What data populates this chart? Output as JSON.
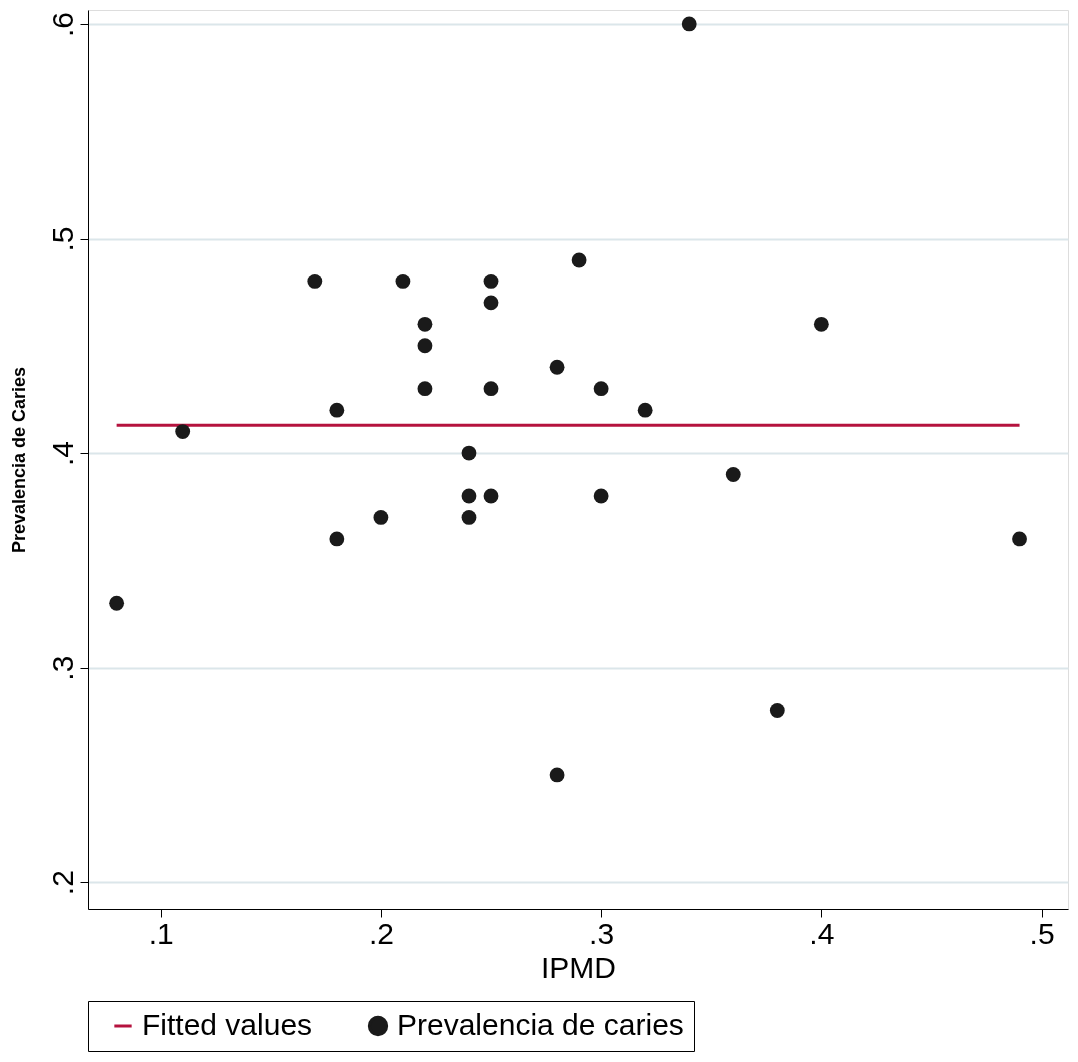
{
  "chart_data": {
    "type": "scatter",
    "xlabel": "IPMD",
    "ylabel": "Prevalencia de Caries",
    "xlim": [
      0.067,
      0.512
    ],
    "ylim": [
      0.1875,
      0.6065
    ],
    "xticks": [
      {
        "value": 0.1,
        "label": ".1"
      },
      {
        "value": 0.2,
        "label": ".2"
      },
      {
        "value": 0.3,
        "label": ".3"
      },
      {
        "value": 0.4,
        "label": ".4"
      },
      {
        "value": 0.5,
        "label": ".5"
      }
    ],
    "yticks": [
      {
        "value": 0.2,
        "label": ".2"
      },
      {
        "value": 0.3,
        "label": ".3"
      },
      {
        "value": 0.4,
        "label": ".4"
      },
      {
        "value": 0.5,
        "label": ".5"
      },
      {
        "value": 0.6,
        "label": ".6"
      }
    ],
    "grid": "y",
    "legend": "bottom",
    "series": [
      {
        "name": "Fitted values",
        "type": "line",
        "color": "#b5123e",
        "line_style": "solid",
        "x": [
          0.08,
          0.49
        ],
        "values": [
          0.413,
          0.413
        ]
      },
      {
        "name": "Prevalencia de caries",
        "color": "#1a1a1a",
        "marker": "circle",
        "x": [
          0.08,
          0.11,
          0.17,
          0.18,
          0.18,
          0.2,
          0.21,
          0.22,
          0.22,
          0.22,
          0.24,
          0.24,
          0.24,
          0.25,
          0.25,
          0.25,
          0.25,
          0.28,
          0.28,
          0.29,
          0.3,
          0.3,
          0.32,
          0.34,
          0.36,
          0.38,
          0.4,
          0.49
        ],
        "values": [
          0.33,
          0.41,
          0.48,
          0.42,
          0.36,
          0.37,
          0.48,
          0.46,
          0.45,
          0.43,
          0.4,
          0.38,
          0.37,
          0.48,
          0.47,
          0.43,
          0.38,
          0.44,
          0.25,
          0.49,
          0.43,
          0.38,
          0.42,
          0.6,
          0.39,
          0.28,
          0.46,
          0.36
        ]
      }
    ]
  }
}
